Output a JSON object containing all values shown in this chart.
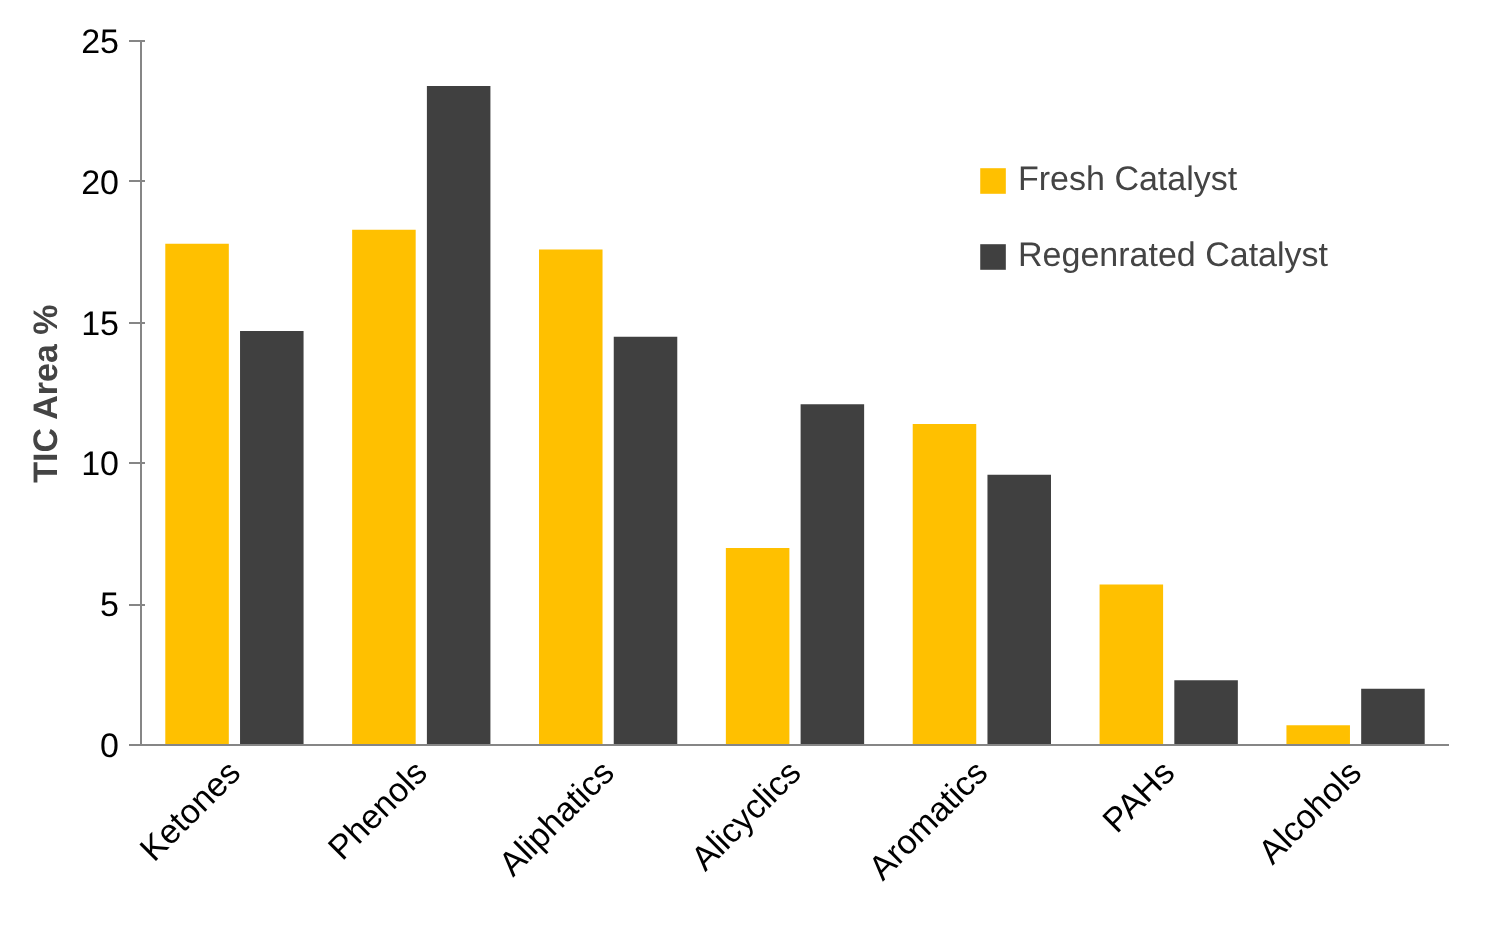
{
  "chart_data": {
    "type": "bar",
    "ylabel": "TIC Area %",
    "categories": [
      "Ketones",
      "Phenols",
      "Aliphatics",
      "Alicyclics",
      "Aromatics",
      "PAHs",
      "Alcohols"
    ],
    "series": [
      {
        "name": "Fresh Catalyst",
        "color": "#ffc000",
        "values": [
          17.8,
          18.3,
          17.6,
          7.0,
          11.4,
          5.7,
          0.7
        ]
      },
      {
        "name": "Regenrated Catalyst",
        "color": "#404040",
        "values": [
          14.7,
          23.4,
          14.5,
          12.1,
          9.6,
          2.3,
          2.0
        ]
      }
    ],
    "ylim": [
      0,
      25
    ],
    "yticks": [
      0,
      5,
      10,
      15,
      20,
      25
    ],
    "grid": false,
    "legend": "top right"
  }
}
